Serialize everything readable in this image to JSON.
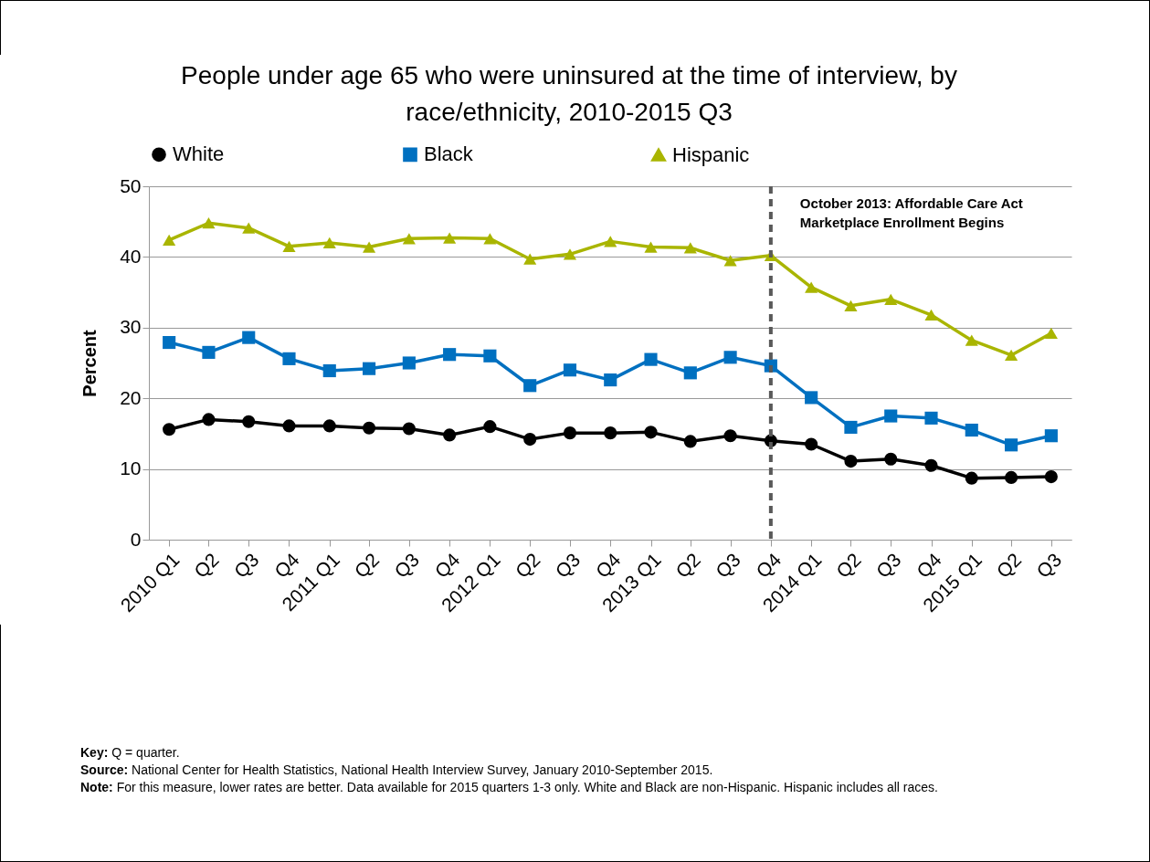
{
  "chart_data": {
    "type": "line",
    "title": "People under age 65 who were uninsured at the time of interview, by race/ethnicity, 2010-2015 Q3",
    "ylabel": "Percent",
    "x": [
      "2010-01",
      "2010-04",
      "2010-07",
      "2010-10",
      "2011-01",
      "2011-04",
      "2011-07",
      "2011-10",
      "2012-01",
      "2012-04",
      "2012-07",
      "2012-10",
      "2013-01",
      "2013-04",
      "2013-07",
      "2013-10",
      "2014-01",
      "2014-04",
      "2014-07",
      "2014-10",
      "2015-01",
      "2015-04",
      "2015-07"
    ],
    "xlim": [
      "2009-11-16",
      "2015-08-16"
    ],
    "xticks": [
      {
        "value": "2010-01",
        "label": "2010 Q1"
      },
      {
        "value": "2010-04",
        "label": "Q2"
      },
      {
        "value": "2010-07",
        "label": "Q3"
      },
      {
        "value": "2010-10",
        "label": "Q4"
      },
      {
        "value": "2011-01",
        "label": "2011 Q1"
      },
      {
        "value": "2011-04",
        "label": "Q2"
      },
      {
        "value": "2011-07",
        "label": "Q3"
      },
      {
        "value": "2011-10",
        "label": "Q4"
      },
      {
        "value": "2012-01",
        "label": "2012 Q1"
      },
      {
        "value": "2012-04",
        "label": "Q2"
      },
      {
        "value": "2012-07",
        "label": "Q3"
      },
      {
        "value": "2012-10",
        "label": "Q4"
      },
      {
        "value": "2013-01",
        "label": "2013 Q1"
      },
      {
        "value": "2013-04",
        "label": "Q2"
      },
      {
        "value": "2013-07",
        "label": "Q3"
      },
      {
        "value": "2013-10",
        "label": "Q4"
      },
      {
        "value": "2014-01",
        "label": "2014 Q1"
      },
      {
        "value": "2014-04",
        "label": "Q2"
      },
      {
        "value": "2014-07",
        "label": "Q3"
      },
      {
        "value": "2014-10",
        "label": "Q4"
      },
      {
        "value": "2015-01",
        "label": "2015 Q1"
      },
      {
        "value": "2015-04",
        "label": "Q2"
      },
      {
        "value": "2015-07",
        "label": "Q3"
      }
    ],
    "ylim": [
      0,
      50
    ],
    "yticks": [
      0,
      10,
      20,
      30,
      40,
      50
    ],
    "grid": "y",
    "legend": "top",
    "series": [
      {
        "name": "White",
        "color": "#000000",
        "marker": "circle",
        "values": [
          15.6,
          17.0,
          16.7,
          16.1,
          16.1,
          15.8,
          15.7,
          14.8,
          16.0,
          14.2,
          15.1,
          15.1,
          15.2,
          13.9,
          14.7,
          14.0,
          13.5,
          11.1,
          11.4,
          10.5,
          8.7,
          8.8,
          8.9
        ]
      },
      {
        "name": "Black",
        "color": "#0070c0",
        "marker": "square",
        "values": [
          27.9,
          26.5,
          28.6,
          25.6,
          23.9,
          24.2,
          25.0,
          26.2,
          26.0,
          21.8,
          24.0,
          22.6,
          25.5,
          23.6,
          25.8,
          24.6,
          20.1,
          15.9,
          17.5,
          17.2,
          15.5,
          13.4,
          14.7
        ]
      },
      {
        "name": "Hispanic",
        "color": "#a9b500",
        "marker": "triangle",
        "values": [
          42.4,
          44.8,
          44.1,
          41.5,
          42.0,
          41.4,
          42.6,
          42.7,
          42.6,
          39.7,
          40.4,
          42.2,
          41.4,
          41.3,
          39.5,
          40.2,
          35.7,
          33.1,
          34.0,
          31.8,
          28.2,
          26.1,
          29.2
        ]
      }
    ],
    "ref_lines": [
      {
        "axis": "x",
        "value": "2013-10",
        "label": "October 2013: Affordable Care Act Marketplace Enrollment Begins",
        "color": "#595959",
        "line_style": "dashed"
      }
    ],
    "annotations": [
      "Key: Q = quarter.",
      "Source: National Center for Health Statistics, National Health Interview Survey, January 2010-September 2015.",
      "Note: For this measure, lower rates are better. Data available for 2015 quarters 1-3 only. White and Black are non-Hispanic. Hispanic includes all races."
    ]
  }
}
